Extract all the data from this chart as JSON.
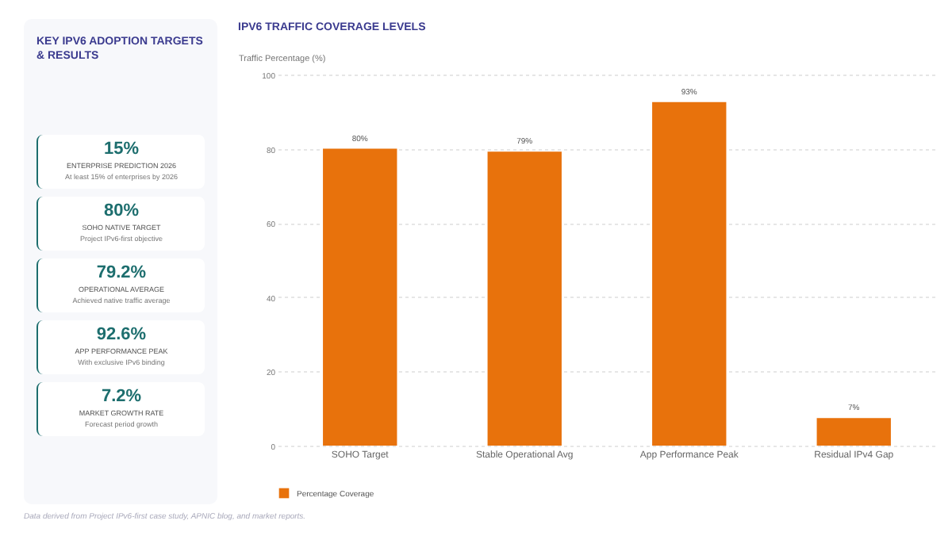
{
  "chart_data": [
    {
      "type": "other",
      "title": "KEY IPV6 ADOPTION TARGETS & RESULTS",
      "annotations": [
        "15%",
        "ENTERPRISE PREDICTION 2026",
        "At least 15% of enterprises by 2026",
        "80%",
        "SOHO NATIVE TARGET",
        "Project IPv6-first objective",
        "79.2%",
        "OPERATIONAL AVERAGE",
        "Achieved native traffic average",
        "92.6%",
        "APP PERFORMANCE PEAK",
        "With exclusive IPv6 binding",
        "7.2%",
        "MARKET GROWTH RATE",
        "Forecast period growth"
      ]
    },
    {
      "type": "bar",
      "title": "IPV6 TRAFFIC COVERAGE LEVELS",
      "ylabel": "Traffic Percentage (%)",
      "categories": [
        "SOHO Target",
        "Stable Operational Avg",
        "App Performance Peak",
        "Residual IPv4 Gap"
      ],
      "series": [
        {
          "name": "Percentage Coverage",
          "color": "#e8720c",
          "values": [
            80,
            79.2,
            92.6,
            7.4
          ],
          "value_labels": [
            "80%",
            "79%",
            "93%",
            "7%"
          ]
        }
      ],
      "ylim": [
        0,
        100
      ],
      "yticks": [
        0,
        20,
        40,
        60,
        80,
        100
      ],
      "grid": "y",
      "legend": "bottom",
      "annotations": [
        "Data derived from Project IPv6-first case study, APNIC blog, and market reports."
      ]
    }
  ]
}
